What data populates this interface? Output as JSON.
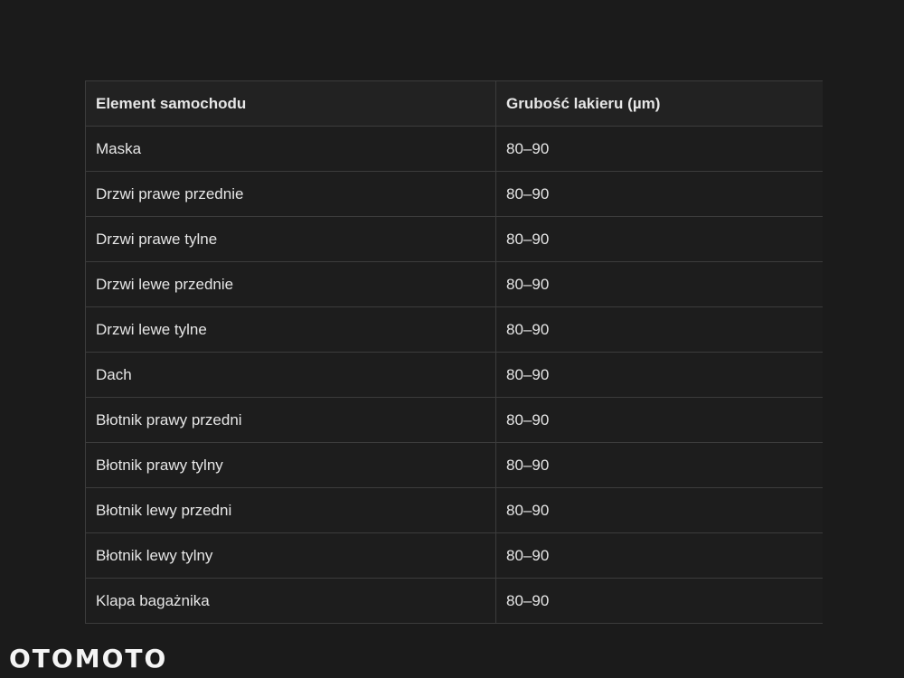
{
  "table": {
    "headers": [
      "Element samochodu",
      "Grubość lakieru (µm)"
    ],
    "rows": [
      [
        "Maska",
        "80–90"
      ],
      [
        "Drzwi prawe przednie",
        "80–90"
      ],
      [
        "Drzwi prawe tylne",
        "80–90"
      ],
      [
        "Drzwi lewe przednie",
        "80–90"
      ],
      [
        "Drzwi lewe tylne",
        "80–90"
      ],
      [
        "Dach",
        "80–90"
      ],
      [
        "Błotnik prawy przedni",
        "80–90"
      ],
      [
        "Błotnik prawy tylny",
        "80–90"
      ],
      [
        "Błotnik lewy przedni",
        "80–90"
      ],
      [
        "Błotnik lewy tylny",
        "80–90"
      ],
      [
        "Klapa bagażnika",
        "80–90"
      ]
    ]
  },
  "watermark": {
    "text": "OTOMOTO"
  }
}
